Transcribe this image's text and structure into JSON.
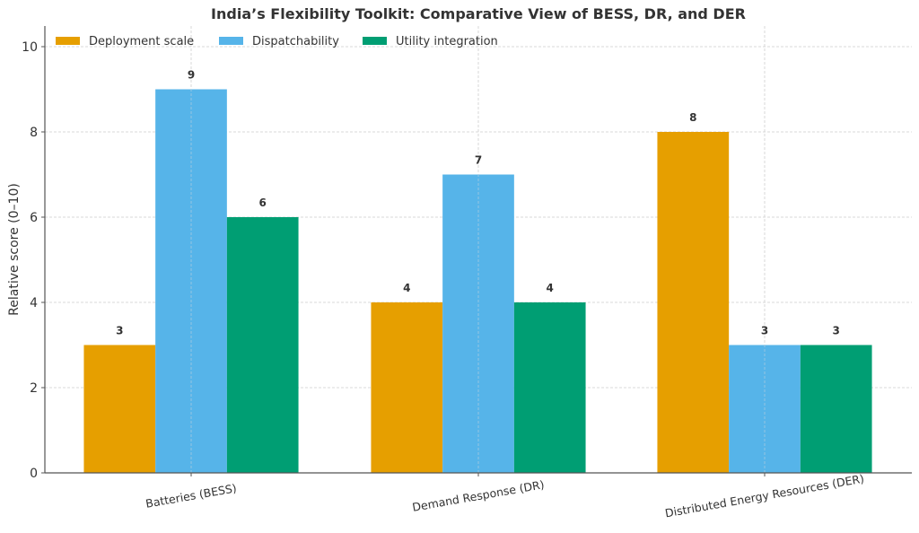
{
  "chart_data": {
    "type": "bar",
    "title": "India’s Flexibility Toolkit: Comparative View of BESS, DR, and DER",
    "xlabel": "",
    "ylabel": "Relative score (0–10)",
    "ylim": [
      0,
      10.5
    ],
    "yticks": [
      "0",
      "2",
      "4",
      "6",
      "8",
      "10"
    ],
    "ytick_values": [
      0,
      2,
      4,
      6,
      8,
      10
    ],
    "grid": true,
    "legend_position": "top-left",
    "categories": [
      "Batteries (BESS)",
      "Demand Response (DR)",
      "Distributed Energy Resources (DER)"
    ],
    "series": [
      {
        "name": "Deployment scale",
        "color": "#E69F00",
        "values": [
          3,
          4,
          8
        ],
        "labels": [
          "3",
          "4",
          "8"
        ]
      },
      {
        "name": "Dispatchability",
        "color": "#56B4E9",
        "values": [
          9,
          7,
          3
        ],
        "labels": [
          "9",
          "7",
          "3"
        ]
      },
      {
        "name": "Utility integration",
        "color": "#009E73",
        "values": [
          6,
          4,
          3
        ],
        "labels": [
          "6",
          "4",
          "3"
        ]
      }
    ]
  }
}
